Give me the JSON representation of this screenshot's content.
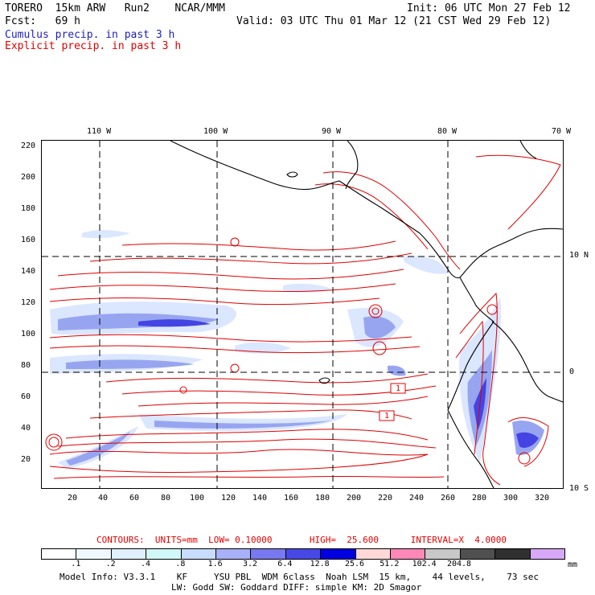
{
  "header": {
    "line1_left": "TORERO  15km ARW   Run2    NCAR/MMM",
    "line1_right": "Init: 06 UTC Mon 27 Feb 12",
    "line2_left": "Fcst:   69 h",
    "line2_right": "Valid: 03 UTC Thu 01 Mar 12 (21 CST Wed 29 Feb 12)",
    "cumulus_label": "Cumulus precip. in past 3 h",
    "explicit_label": "Explicit precip. in past 3 h"
  },
  "map": {
    "top_lon_labels": [
      "110 W",
      "100 W",
      "90 W",
      "80 W",
      "70 W"
    ],
    "right_lat_labels": [
      "10 N",
      "0",
      "10 S"
    ],
    "left_y_ticks": [
      "220",
      "200",
      "180",
      "160",
      "140",
      "120",
      "100",
      "80",
      "60",
      "40",
      "20"
    ],
    "bottom_x_ticks": [
      "20",
      "40",
      "60",
      "80",
      "100",
      "120",
      "140",
      "160",
      "180",
      "200",
      "220",
      "240",
      "260",
      "280",
      "300",
      "320"
    ],
    "contour_labels": [
      "1",
      "1"
    ],
    "colors": {
      "contour": "#e00000",
      "coast": "#000000",
      "precip_light": "#d8e4ff",
      "precip_mid": "#8c9cf0",
      "precip_dark": "#3030e0"
    }
  },
  "contours_info": {
    "text": "CONTOURS:  UNITS=mm  LOW= 0.10000       HIGH=  25.600      INTERVAL=X  4.0000"
  },
  "legend": {
    "colors": [
      "#ffffff",
      "#f0f8ff",
      "#e0f0ff",
      "#d0f8f8",
      "#c8dcff",
      "#a8b0f8",
      "#7878f0",
      "#4848e8",
      "#0000e0",
      "#ffd8d8",
      "#ff88b8",
      "#c8c8c8",
      "#505050",
      "#303030",
      "#d8a8f8"
    ],
    "labels": [
      ".1",
      ".2",
      ".4",
      ".8",
      "1.6",
      "3.2",
      "6.4",
      "12.8",
      "25.6",
      "51.2",
      "102.4",
      "204.8"
    ],
    "unit": "mm"
  },
  "footer": {
    "line1": "Model Info: V3.3.1    KF     YSU PBL  WDM 6class  Noah LSM  15 km,    44 levels,    73 sec",
    "line2": "LW: Godd SW: Goddard DIFF: simple KM: 2D Smagor"
  }
}
